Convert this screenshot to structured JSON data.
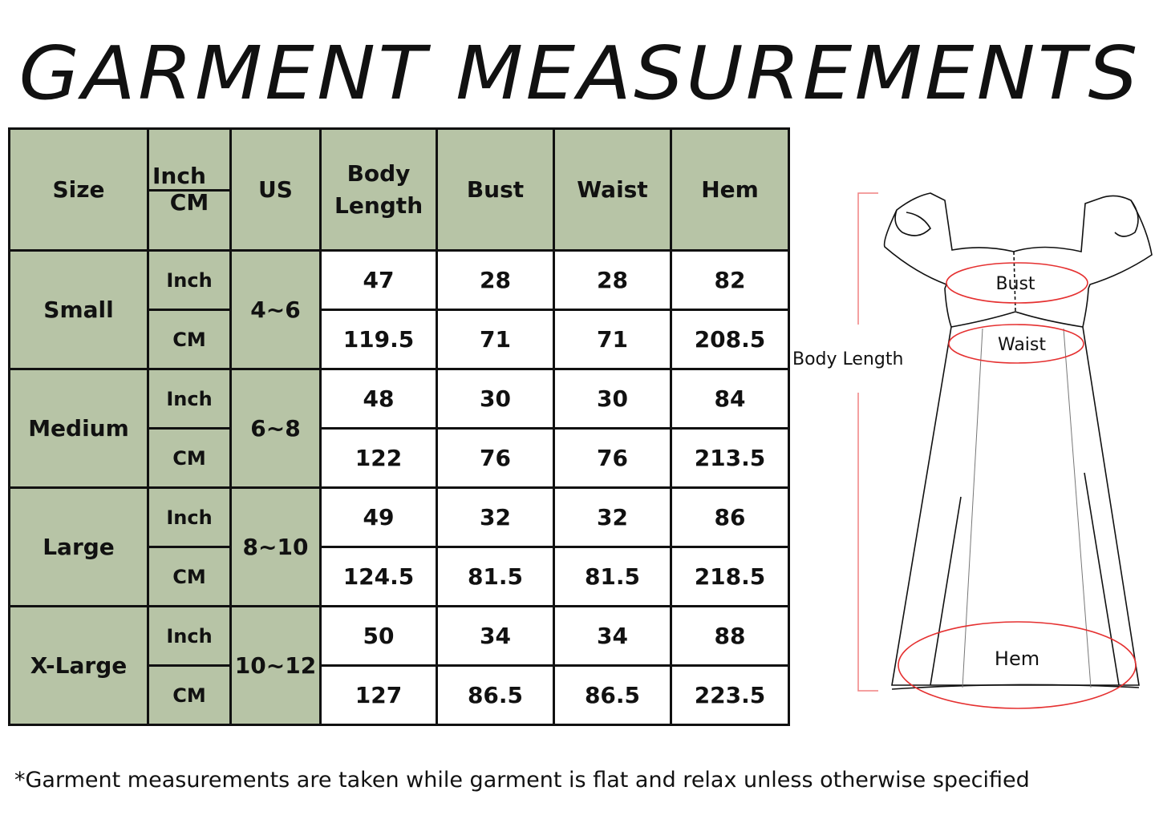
{
  "title": "GARMENT MEASUREMENTS",
  "table": {
    "headers": {
      "size": "Size",
      "unit_top": "Inch",
      "unit_bottom": "CM",
      "us": "US",
      "body_length": "Body Length",
      "bust": "Bust",
      "waist": "Waist",
      "hem": "Hem"
    },
    "rows": [
      {
        "size": "Small",
        "us": "4~6",
        "inch": {
          "unit": "Inch",
          "body_length": "47",
          "bust": "28",
          "waist": "28",
          "hem": "82"
        },
        "cm": {
          "unit": "CM",
          "body_length": "119.5",
          "bust": "71",
          "waist": "71",
          "hem": "208.5"
        }
      },
      {
        "size": "Medium",
        "us": "6~8",
        "inch": {
          "unit": "Inch",
          "body_length": "48",
          "bust": "30",
          "waist": "30",
          "hem": "84"
        },
        "cm": {
          "unit": "CM",
          "body_length": "122",
          "bust": "76",
          "waist": "76",
          "hem": "213.5"
        }
      },
      {
        "size": "Large",
        "us": "8~10",
        "inch": {
          "unit": "Inch",
          "body_length": "49",
          "bust": "32",
          "waist": "32",
          "hem": "86"
        },
        "cm": {
          "unit": "CM",
          "body_length": "124.5",
          "bust": "81.5",
          "waist": "81.5",
          "hem": "218.5"
        }
      },
      {
        "size": "X-Large",
        "us": "10~12",
        "inch": {
          "unit": "Inch",
          "body_length": "50",
          "bust": "34",
          "waist": "34",
          "hem": "88"
        },
        "cm": {
          "unit": "CM",
          "body_length": "127",
          "bust": "86.5",
          "waist": "86.5",
          "hem": "223.5"
        }
      }
    ],
    "colors": {
      "header_fill": "#b7c4a6",
      "border": "#111111"
    }
  },
  "diagram": {
    "body_length_label": "Body Length",
    "bust_label": "Bust",
    "waist_label": "Waist",
    "hem_label": "Hem",
    "marker_color": "#e53030"
  },
  "footnote": "*Garment measurements are taken while garment is flat and relax unless otherwise specified"
}
